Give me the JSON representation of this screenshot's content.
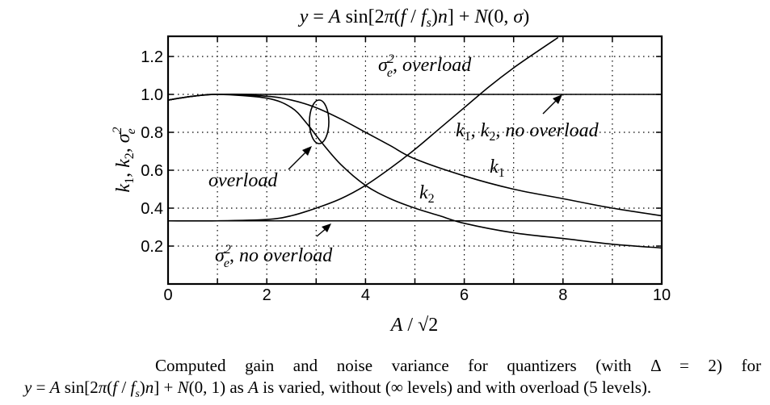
{
  "chart_data": {
    "type": "line",
    "title": "y = A sin[2π(f / fs)n] + N(0, σ)",
    "xlabel": "A/√2",
    "ylabel": "k1, k2, σe²",
    "xlim": [
      0,
      10
    ],
    "ylim": [
      0,
      1.3
    ],
    "xticks": [
      0,
      2,
      4,
      6,
      8,
      10
    ],
    "xtick_labels": [
      "0",
      "2",
      "4",
      "6",
      "8",
      "10"
    ],
    "yticks": [
      0.2,
      0.4,
      0.6,
      0.8,
      1.0,
      1.2
    ],
    "ytick_labels": [
      "0.2",
      "0.4",
      "0.6",
      "0.8",
      "1.0",
      "1.2"
    ],
    "grid": true,
    "grid_style": "dotted",
    "x_minor_grid": [
      1,
      3,
      5,
      7,
      9
    ],
    "series": [
      {
        "name": "k1, k2, no overload",
        "x": [
          0,
          0.5,
          1,
          2,
          3,
          4,
          5,
          6,
          7,
          8,
          9,
          10
        ],
        "y": [
          0.97,
          0.99,
          1.0,
          1.0,
          1.0,
          1.0,
          1.0,
          1.0,
          1.0,
          1.0,
          1.0,
          1.0
        ]
      },
      {
        "name": "σe², no overload",
        "x": [
          0,
          1,
          2,
          3,
          4,
          5,
          6,
          7,
          8,
          9,
          10
        ],
        "y": [
          0.333,
          0.333,
          0.333,
          0.333,
          0.333,
          0.333,
          0.333,
          0.333,
          0.333,
          0.333,
          0.333
        ]
      },
      {
        "name": "k1 (overload)",
        "x": [
          0,
          0.5,
          1,
          2,
          2.5,
          3,
          3.5,
          4,
          4.5,
          5,
          6,
          7,
          8,
          9,
          10
        ],
        "y": [
          0.97,
          0.99,
          1.0,
          0.99,
          0.97,
          0.93,
          0.87,
          0.8,
          0.73,
          0.66,
          0.57,
          0.5,
          0.45,
          0.4,
          0.36
        ]
      },
      {
        "name": "k2 (overload)",
        "x": [
          0,
          0.5,
          1,
          2,
          2.5,
          2.8,
          3.1,
          3.5,
          4,
          4.5,
          5,
          5.5,
          6,
          7,
          8,
          9,
          10
        ],
        "y": [
          0.97,
          0.99,
          1.0,
          0.98,
          0.93,
          0.85,
          0.75,
          0.63,
          0.52,
          0.45,
          0.4,
          0.36,
          0.32,
          0.27,
          0.24,
          0.21,
          0.19
        ]
      },
      {
        "name": "σe², overload",
        "x": [
          0,
          1,
          2,
          2.5,
          3,
          3.5,
          4,
          4.5,
          5,
          5.5,
          6,
          6.5,
          7,
          7.5,
          7.9
        ],
        "y": [
          0.333,
          0.333,
          0.34,
          0.36,
          0.4,
          0.45,
          0.52,
          0.61,
          0.71,
          0.82,
          0.93,
          1.04,
          1.14,
          1.23,
          1.3
        ]
      }
    ],
    "annotations": [
      {
        "text": "σe², overload",
        "x": 4.3,
        "y": 1.16
      },
      {
        "text": "k1, k2, no overload",
        "x": 5.8,
        "y": 0.81
      },
      {
        "text": "k1",
        "x": 6.6,
        "y": 0.63
      },
      {
        "text": "k2",
        "x": 5.1,
        "y": 0.47
      },
      {
        "text": "overload",
        "x": 0.8,
        "y": 0.58
      },
      {
        "text": "σe², no overload",
        "x": 0.9,
        "y": 0.14
      }
    ]
  },
  "figure": {
    "title": "y = A sin[2π(f / fs)n] + N(0, σ)",
    "xlabel": "A/√2",
    "ylabel": "k1, k2, σe²",
    "labels": {
      "sigma_overload": "σe², overload",
      "k_no_overload": "k1, k2, no overload",
      "k1": "k1",
      "k2": "k2",
      "overload": "overload",
      "sigma_no_overload": "σe², no overload"
    }
  },
  "caption": {
    "line1": "Computed gain and noise variance for quantizers (with Δ = 2) for",
    "line2": "y = A sin[2π(f / fs)n] + N(0, 1) as A is varied, without (∞ levels) and with overload (5 levels)."
  }
}
